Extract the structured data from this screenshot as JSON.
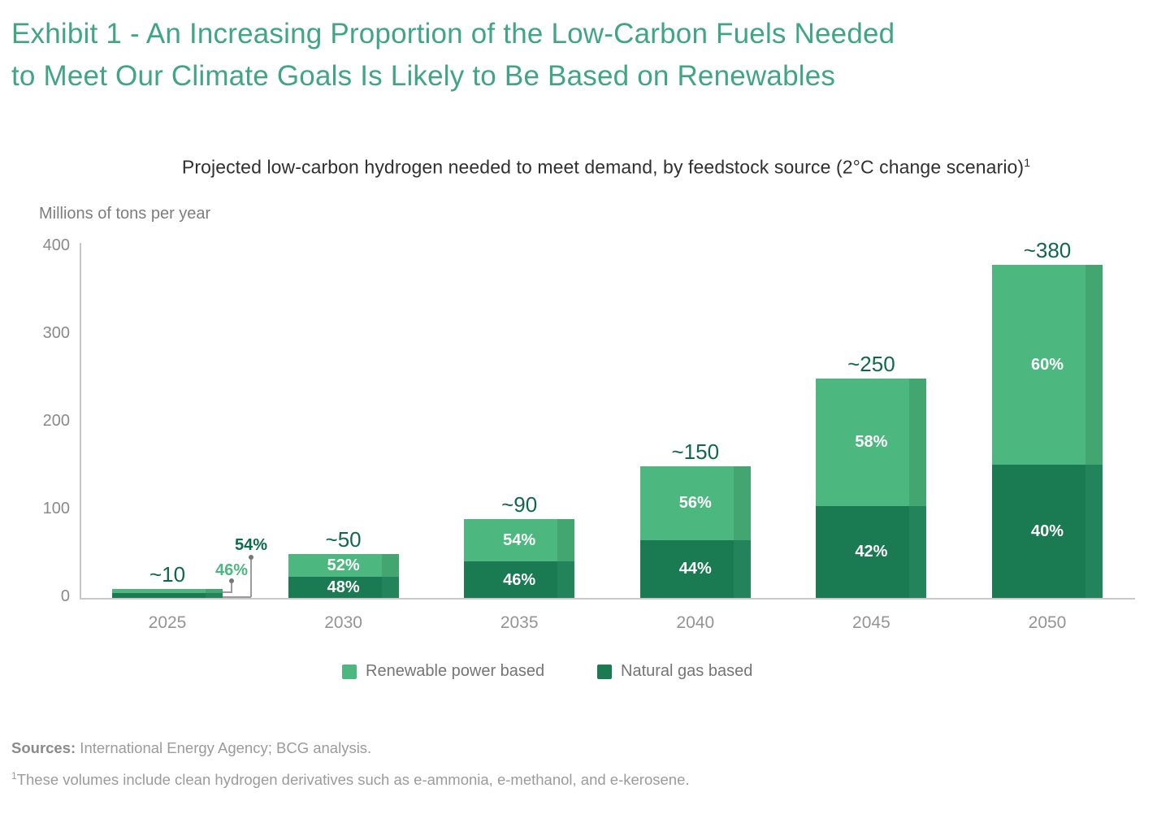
{
  "header": {
    "title_line1": "Exhibit 1 - An Increasing Proportion of the Low-Carbon Fuels Needed",
    "title_line2": "to Meet Our Climate Goals Is Likely to Be Based on Renewables"
  },
  "subtitle": {
    "text": "Projected low-carbon hydrogen needed to meet demand, by feedstock source (2°C change scenario)",
    "superscript": "1"
  },
  "chart_data": {
    "type": "bar",
    "stacked": true,
    "title": "Projected low-carbon hydrogen needed to meet demand, by feedstock source (2°C change scenario)",
    "ylabel": "Millions of tons per year",
    "xlabel": "",
    "ylim": [
      0,
      400
    ],
    "y_ticks": [
      0,
      100,
      200,
      300,
      400
    ],
    "grid": false,
    "legend_position": "bottom",
    "categories": [
      "2025",
      "2030",
      "2035",
      "2040",
      "2045",
      "2050"
    ],
    "totals": [
      10,
      50,
      90,
      150,
      250,
      380
    ],
    "total_labels": [
      "~10",
      "~50",
      "~90",
      "~150",
      "~250",
      "~380"
    ],
    "series": [
      {
        "name": "Renewable power based",
        "position": "top",
        "color": "#4CB77E",
        "side_color": "#43A671",
        "share_pct": [
          46,
          52,
          54,
          56,
          58,
          60
        ],
        "pct_labels": [
          "46%",
          "52%",
          "54%",
          "56%",
          "58%",
          "60%"
        ]
      },
      {
        "name": "Natural gas based",
        "position": "bottom",
        "color": "#1A7A52",
        "side_color": "#23835B",
        "share_pct": [
          54,
          48,
          46,
          44,
          42,
          40
        ],
        "pct_labels": [
          "54%",
          "48%",
          "46%",
          "44%",
          "42%",
          "40%"
        ]
      }
    ],
    "first_bar_callout": {
      "renewable_label": "46%",
      "gas_label": "54%"
    },
    "legend": [
      {
        "label": "Renewable power based",
        "color": "#4CB77E"
      },
      {
        "label": "Natural gas based",
        "color": "#1A7A52"
      }
    ]
  },
  "footer": {
    "sources_bold": "Sources:",
    "sources_rest": " International Energy Agency; BCG analysis.",
    "footnote_superscript": "1",
    "footnote_text": "These volumes include clean hydrogen derivatives such as e-ammonia, e-methanol, and e-kerosene."
  }
}
